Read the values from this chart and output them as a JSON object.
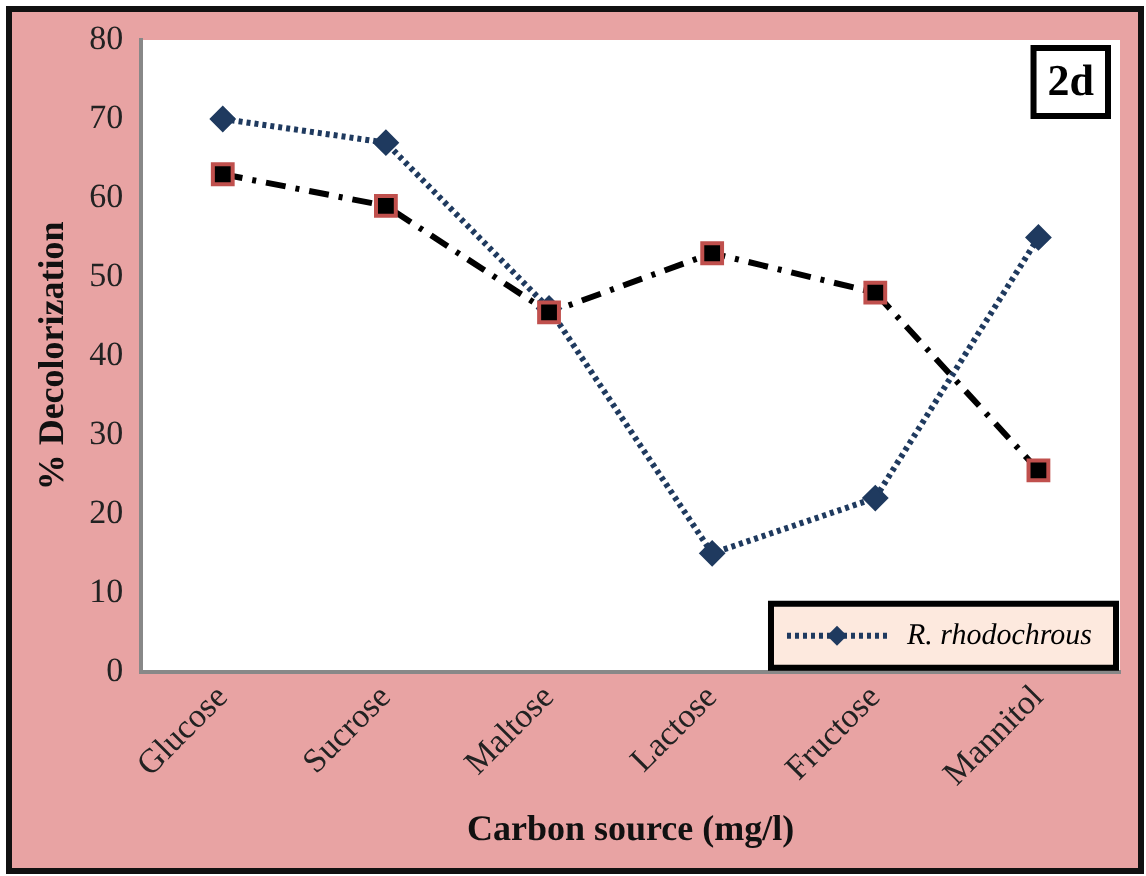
{
  "chart_data": {
    "type": "line",
    "xlabel": "Carbon source (mg/l)",
    "ylabel": "% Decolorization",
    "categories": [
      "Glucose",
      "Sucrose",
      "Maltose",
      "Lactose",
      "Fructose",
      "Mannitol"
    ],
    "ylim": [
      0,
      80
    ],
    "yticks": [
      0,
      10,
      20,
      30,
      40,
      50,
      60,
      70,
      80
    ],
    "grid": false,
    "legend": "bottom right",
    "series": [
      {
        "name": "R. rhodochrous",
        "color": "#1f3a5f",
        "values": [
          70,
          67,
          46,
          15,
          22,
          55
        ],
        "marker": "diamond",
        "line_style": "dotted"
      },
      {
        "color": "#000000",
        "values": [
          63,
          59,
          45.5,
          53,
          48,
          25.5
        ],
        "marker": "square",
        "line_style": "dashdot"
      }
    ],
    "annotations": [
      "2d"
    ]
  }
}
